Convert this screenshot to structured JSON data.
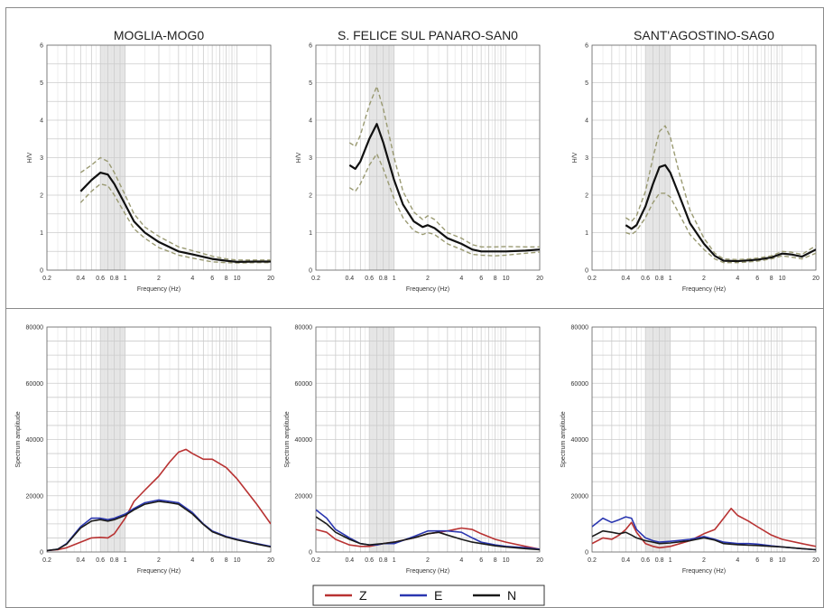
{
  "colors": {
    "Z": "#b83232",
    "E": "#2a36b0",
    "N": "#1a1a1a",
    "hv": "#111111",
    "hv_std": "#9a9a72",
    "grid": "#cccccc",
    "band": "#e6e6e6",
    "frame": "#8a8a8a"
  },
  "legend": [
    {
      "label": "Z"
    },
    {
      "label": "E"
    },
    {
      "label": "N"
    }
  ],
  "chart_data": [
    {
      "type": "line",
      "title": "MOGLIA-MOG0",
      "xlabel": "Frequency (Hz)",
      "ylabel": "H/V",
      "xscale": "log",
      "xlim": [
        0.2,
        20
      ],
      "ylim": [
        0,
        6
      ],
      "xticks": [
        "0.2",
        "0.4",
        "0.6",
        "0.8",
        "1",
        "2",
        "4",
        "6",
        "8",
        "10",
        "20"
      ],
      "yticks": [
        "0",
        "1",
        "2",
        "3",
        "4",
        "5",
        "6"
      ],
      "series": [
        {
          "x": [
            0.4,
            0.5,
            0.6,
            0.7,
            0.8,
            1,
            1.2,
            1.5,
            2,
            3,
            4,
            6,
            8,
            10,
            15,
            20
          ],
          "y": [
            1.8,
            2.1,
            2.3,
            2.25,
            2.0,
            1.5,
            1.1,
            0.85,
            0.6,
            0.4,
            0.32,
            0.22,
            0.2,
            0.19,
            0.2,
            0.2
          ]
        },
        {
          "x": [
            0.4,
            0.5,
            0.6,
            0.7,
            0.8,
            1,
            1.2,
            1.5,
            2,
            3,
            4,
            6,
            8,
            10,
            15,
            20
          ],
          "y": [
            2.1,
            2.4,
            2.6,
            2.55,
            2.3,
            1.75,
            1.3,
            1.0,
            0.75,
            0.5,
            0.42,
            0.3,
            0.25,
            0.22,
            0.23,
            0.23
          ]
        },
        {
          "x": [
            0.4,
            0.5,
            0.6,
            0.7,
            0.8,
            1,
            1.2,
            1.5,
            2,
            3,
            4,
            6,
            8,
            10,
            15,
            20
          ],
          "y": [
            2.6,
            2.8,
            3.0,
            2.9,
            2.6,
            2.0,
            1.5,
            1.15,
            0.9,
            0.62,
            0.52,
            0.37,
            0.3,
            0.27,
            0.27,
            0.27
          ]
        }
      ]
    },
    {
      "type": "line",
      "title": "S. FELICE SUL PANARO-SAN0",
      "xlabel": "Frequency (Hz)",
      "ylabel": "H/V",
      "xscale": "log",
      "xlim": [
        0.2,
        20
      ],
      "ylim": [
        0,
        6
      ],
      "xticks": [
        "0.2",
        "0.4",
        "0.6",
        "0.8",
        "1",
        "2",
        "4",
        "6",
        "8",
        "10",
        "20"
      ],
      "yticks": [
        "0",
        "1",
        "2",
        "3",
        "4",
        "5",
        "6"
      ],
      "series": [
        {
          "x": [
            0.4,
            0.45,
            0.5,
            0.6,
            0.7,
            0.8,
            1,
            1.2,
            1.5,
            1.8,
            2,
            2.3,
            3,
            4,
            5,
            6,
            8,
            10,
            15,
            20
          ],
          "y": [
            2.2,
            2.1,
            2.3,
            2.8,
            3.1,
            2.7,
            1.9,
            1.4,
            1.05,
            0.95,
            1.0,
            0.95,
            0.7,
            0.55,
            0.42,
            0.4,
            0.38,
            0.4,
            0.45,
            0.48
          ]
        },
        {
          "x": [
            0.4,
            0.45,
            0.5,
            0.6,
            0.7,
            0.8,
            1,
            1.2,
            1.5,
            1.8,
            2,
            2.3,
            3,
            4,
            5,
            6,
            8,
            10,
            15,
            20
          ],
          "y": [
            2.8,
            2.7,
            2.9,
            3.5,
            3.9,
            3.4,
            2.4,
            1.75,
            1.3,
            1.15,
            1.2,
            1.12,
            0.85,
            0.7,
            0.55,
            0.5,
            0.5,
            0.5,
            0.52,
            0.55
          ]
        },
        {
          "x": [
            0.4,
            0.45,
            0.5,
            0.6,
            0.7,
            0.8,
            1,
            1.2,
            1.5,
            1.8,
            2,
            2.3,
            3,
            4,
            5,
            6,
            8,
            10,
            15,
            20
          ],
          "y": [
            3.4,
            3.3,
            3.6,
            4.4,
            4.9,
            4.3,
            3.0,
            2.1,
            1.55,
            1.35,
            1.45,
            1.35,
            1.0,
            0.85,
            0.68,
            0.62,
            0.62,
            0.63,
            0.62,
            0.62
          ]
        }
      ]
    },
    {
      "type": "line",
      "title": "SANT'AGOSTINO-SAG0",
      "xlabel": "Frequency (Hz)",
      "ylabel": "H/V",
      "xscale": "log",
      "xlim": [
        0.2,
        20
      ],
      "ylim": [
        0,
        6
      ],
      "xticks": [
        "0.2",
        "0.4",
        "0.6",
        "0.8",
        "1",
        "2",
        "4",
        "6",
        "8",
        "10",
        "20"
      ],
      "yticks": [
        "0",
        "1",
        "2",
        "3",
        "4",
        "5",
        "6"
      ],
      "series": [
        {
          "x": [
            0.4,
            0.45,
            0.5,
            0.6,
            0.7,
            0.8,
            0.9,
            1,
            1.2,
            1.5,
            2,
            2.5,
            3,
            4,
            5,
            6,
            8,
            10,
            12,
            15,
            20
          ],
          "y": [
            1.0,
            0.95,
            1.05,
            1.4,
            1.8,
            2.05,
            2.05,
            1.95,
            1.5,
            0.95,
            0.55,
            0.3,
            0.2,
            0.2,
            0.22,
            0.24,
            0.3,
            0.38,
            0.35,
            0.3,
            0.45
          ]
        },
        {
          "x": [
            0.4,
            0.45,
            0.5,
            0.6,
            0.7,
            0.8,
            0.9,
            1,
            1.2,
            1.5,
            2,
            2.5,
            3,
            4,
            5,
            6,
            8,
            10,
            12,
            15,
            20
          ],
          "y": [
            1.2,
            1.1,
            1.2,
            1.7,
            2.3,
            2.75,
            2.8,
            2.6,
            2.0,
            1.25,
            0.7,
            0.38,
            0.25,
            0.24,
            0.26,
            0.28,
            0.34,
            0.44,
            0.42,
            0.36,
            0.55
          ]
        },
        {
          "x": [
            0.4,
            0.45,
            0.5,
            0.6,
            0.7,
            0.8,
            0.9,
            1,
            1.2,
            1.5,
            2,
            2.5,
            3,
            4,
            5,
            6,
            8,
            10,
            12,
            15,
            20
          ],
          "y": [
            1.4,
            1.3,
            1.45,
            2.1,
            3.0,
            3.7,
            3.85,
            3.55,
            2.6,
            1.6,
            0.85,
            0.45,
            0.3,
            0.28,
            0.3,
            0.32,
            0.38,
            0.5,
            0.48,
            0.42,
            0.65
          ]
        }
      ]
    },
    {
      "type": "line",
      "xlabel": "Frequency (Hz)",
      "ylabel": "Spectrum amplitude",
      "xscale": "log",
      "xlim": [
        0.2,
        20
      ],
      "ylim": [
        0,
        80000
      ],
      "xticks": [
        "0.2",
        "0.4",
        "0.6",
        "0.8",
        "1",
        "2",
        "4",
        "6",
        "8",
        "10",
        "20"
      ],
      "yticks": [
        "0",
        "20000",
        "40000",
        "60000",
        "80000"
      ],
      "series": [
        {
          "name": "Z",
          "x": [
            0.2,
            0.25,
            0.3,
            0.4,
            0.5,
            0.6,
            0.7,
            0.8,
            1,
            1.2,
            1.5,
            2,
            2.5,
            3,
            3.5,
            4,
            5,
            6,
            8,
            10,
            15,
            20
          ],
          "y": [
            500,
            800,
            1500,
            3500,
            5000,
            5200,
            5000,
            6500,
            12000,
            18000,
            22000,
            27000,
            32000,
            35500,
            36500,
            35000,
            33000,
            33000,
            30000,
            26000,
            17000,
            10000
          ]
        },
        {
          "name": "E",
          "x": [
            0.2,
            0.25,
            0.3,
            0.4,
            0.5,
            0.6,
            0.7,
            0.8,
            1,
            1.2,
            1.5,
            2,
            2.5,
            3,
            4,
            5,
            6,
            8,
            10,
            15,
            20
          ],
          "y": [
            500,
            1000,
            3000,
            9000,
            12000,
            12000,
            11500,
            12000,
            13500,
            15500,
            17500,
            18500,
            18000,
            17500,
            14000,
            10000,
            7500,
            5500,
            4500,
            3000,
            2000
          ]
        },
        {
          "name": "N",
          "x": [
            0.2,
            0.25,
            0.3,
            0.4,
            0.5,
            0.6,
            0.7,
            0.8,
            1,
            1.2,
            1.5,
            2,
            2.5,
            3,
            4,
            5,
            6,
            8,
            10,
            15,
            20
          ],
          "y": [
            500,
            1000,
            2800,
            8500,
            11000,
            11500,
            11000,
            11500,
            13000,
            15000,
            17000,
            18000,
            17500,
            17000,
            13500,
            9800,
            7200,
            5300,
            4300,
            2800,
            1800
          ]
        }
      ]
    },
    {
      "type": "line",
      "xlabel": "Frequency (Hz)",
      "ylabel": "Spectrum amplitude",
      "xscale": "log",
      "xlim": [
        0.2,
        20
      ],
      "ylim": [
        0,
        80000
      ],
      "xticks": [
        "0.2",
        "0.4",
        "0.6",
        "0.8",
        "1",
        "2",
        "4",
        "6",
        "8",
        "10",
        "20"
      ],
      "yticks": [
        "0",
        "20000",
        "40000",
        "60000",
        "80000"
      ],
      "series": [
        {
          "name": "Z",
          "x": [
            0.2,
            0.25,
            0.3,
            0.4,
            0.5,
            0.6,
            0.7,
            0.8,
            1,
            1.5,
            2,
            2.5,
            3,
            4,
            5,
            6,
            8,
            10,
            15,
            20
          ],
          "y": [
            8000,
            7000,
            4500,
            2500,
            2000,
            2000,
            2500,
            3000,
            3500,
            5000,
            6500,
            7000,
            7500,
            8500,
            8000,
            6500,
            4500,
            3500,
            2000,
            1000
          ]
        },
        {
          "name": "E",
          "x": [
            0.2,
            0.25,
            0.3,
            0.4,
            0.5,
            0.6,
            0.7,
            0.8,
            1,
            1.5,
            2,
            2.5,
            3,
            4,
            5,
            6,
            8,
            10,
            15,
            20
          ],
          "y": [
            15000,
            12000,
            8000,
            5000,
            3000,
            2500,
            2500,
            3000,
            3000,
            5500,
            7500,
            7500,
            7500,
            7000,
            5000,
            3500,
            2500,
            2000,
            1500,
            1000
          ]
        },
        {
          "name": "N",
          "x": [
            0.2,
            0.25,
            0.3,
            0.4,
            0.5,
            0.6,
            0.7,
            0.8,
            1,
            1.5,
            2,
            2.5,
            3,
            4,
            5,
            6,
            8,
            10,
            15,
            20
          ],
          "y": [
            12500,
            10000,
            7000,
            4500,
            3000,
            2500,
            2800,
            3000,
            3500,
            5000,
            6500,
            7000,
            6000,
            4500,
            3500,
            3000,
            2200,
            1800,
            1200,
            800
          ]
        }
      ]
    },
    {
      "type": "line",
      "xlabel": "Frequency (Hz)",
      "ylabel": "Spectrum amplitude",
      "xscale": "log",
      "xlim": [
        0.2,
        20
      ],
      "ylim": [
        0,
        80000
      ],
      "xticks": [
        "0.2",
        "0.4",
        "0.6",
        "0.8",
        "1",
        "2",
        "4",
        "6",
        "8",
        "10",
        "20"
      ],
      "yticks": [
        "0",
        "20000",
        "40000",
        "60000",
        "80000"
      ],
      "series": [
        {
          "name": "Z",
          "x": [
            0.2,
            0.25,
            0.3,
            0.35,
            0.4,
            0.45,
            0.5,
            0.6,
            0.7,
            0.8,
            1,
            1.5,
            2,
            2.5,
            3,
            3.5,
            4,
            5,
            6,
            8,
            10,
            15,
            20
          ],
          "y": [
            3000,
            5000,
            4500,
            6000,
            8000,
            10500,
            7000,
            3000,
            2000,
            1500,
            2000,
            4000,
            6500,
            8000,
            12000,
            15500,
            13000,
            11000,
            9000,
            6000,
            4500,
            3000,
            2000
          ]
        },
        {
          "name": "E",
          "x": [
            0.2,
            0.25,
            0.3,
            0.35,
            0.4,
            0.45,
            0.5,
            0.6,
            0.7,
            0.8,
            1,
            1.5,
            2,
            2.5,
            3,
            4,
            5,
            6,
            8,
            10,
            15,
            20
          ],
          "y": [
            9000,
            12000,
            10500,
            11500,
            12500,
            12000,
            8000,
            5000,
            4000,
            3500,
            3800,
            4500,
            5500,
            4500,
            3500,
            3000,
            3000,
            2800,
            2200,
            1800,
            1200,
            800
          ]
        },
        {
          "name": "N",
          "x": [
            0.2,
            0.25,
            0.3,
            0.35,
            0.4,
            0.45,
            0.5,
            0.6,
            0.7,
            0.8,
            1,
            1.5,
            2,
            2.5,
            3,
            4,
            5,
            6,
            8,
            10,
            15,
            20
          ],
          "y": [
            5500,
            7500,
            7000,
            6500,
            7000,
            6000,
            5000,
            4000,
            3500,
            3000,
            3200,
            4000,
            5000,
            4200,
            3000,
            2600,
            2400,
            2300,
            2000,
            1800,
            1200,
            800
          ]
        }
      ]
    }
  ]
}
